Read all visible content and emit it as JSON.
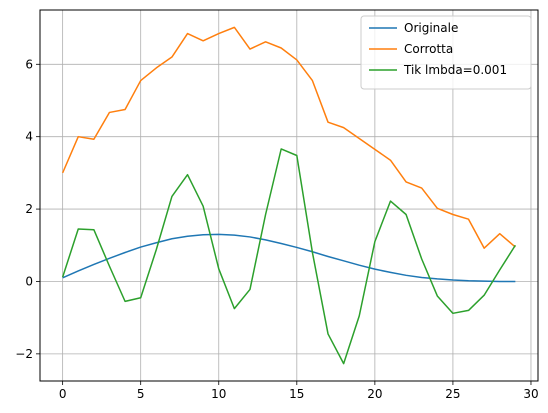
{
  "chart_data": {
    "type": "line",
    "title": "",
    "xlabel": "",
    "ylabel": "",
    "xlim": [
      -1.45,
      30.45
    ],
    "ylim": [
      -2.75,
      7.5
    ],
    "xticks": [
      0,
      5,
      10,
      15,
      20,
      25,
      30
    ],
    "xtick_labels": [
      "0",
      "5",
      "10",
      "15",
      "20",
      "25",
      "30"
    ],
    "yticks": [
      -2,
      0,
      2,
      4,
      6
    ],
    "ytick_labels": [
      "−2",
      "0",
      "2",
      "4",
      "6"
    ],
    "grid": true,
    "legend_position": "top-right",
    "x": [
      0,
      1,
      2,
      3,
      4,
      5,
      6,
      7,
      8,
      9,
      10,
      11,
      12,
      13,
      14,
      15,
      16,
      17,
      18,
      19,
      20,
      21,
      22,
      23,
      24,
      25,
      26,
      27,
      28,
      29
    ],
    "series": [
      {
        "name": "Originale",
        "color": "#1f77b4",
        "values": [
          0.1,
          0.29,
          0.47,
          0.64,
          0.8,
          0.95,
          1.07,
          1.18,
          1.25,
          1.29,
          1.3,
          1.28,
          1.23,
          1.15,
          1.05,
          0.94,
          0.82,
          0.69,
          0.57,
          0.45,
          0.34,
          0.25,
          0.17,
          0.11,
          0.07,
          0.04,
          0.02,
          0.01,
          0.0,
          0.0
        ]
      },
      {
        "name": "Corrotta",
        "color": "#ff7f0e",
        "values": [
          3.0,
          4.0,
          3.93,
          4.67,
          4.75,
          5.55,
          5.9,
          6.2,
          6.85,
          6.65,
          6.85,
          7.02,
          6.42,
          6.62,
          6.45,
          6.12,
          5.55,
          4.4,
          4.25,
          3.95,
          3.65,
          3.35,
          2.75,
          2.58,
          2.02,
          1.85,
          1.72,
          0.92,
          1.32,
          0.95
        ]
      },
      {
        "name": "Tik lmbda=0.001",
        "color": "#2ca02c",
        "values": [
          0.12,
          1.45,
          1.43,
          0.42,
          -0.55,
          -0.45,
          0.88,
          2.35,
          2.95,
          2.08,
          0.35,
          -0.75,
          -0.22,
          1.85,
          3.66,
          3.48,
          0.8,
          -1.45,
          -2.27,
          -0.95,
          1.1,
          2.22,
          1.85,
          0.62,
          -0.4,
          -0.88,
          -0.8,
          -0.38,
          0.32,
          1.0
        ]
      }
    ]
  }
}
